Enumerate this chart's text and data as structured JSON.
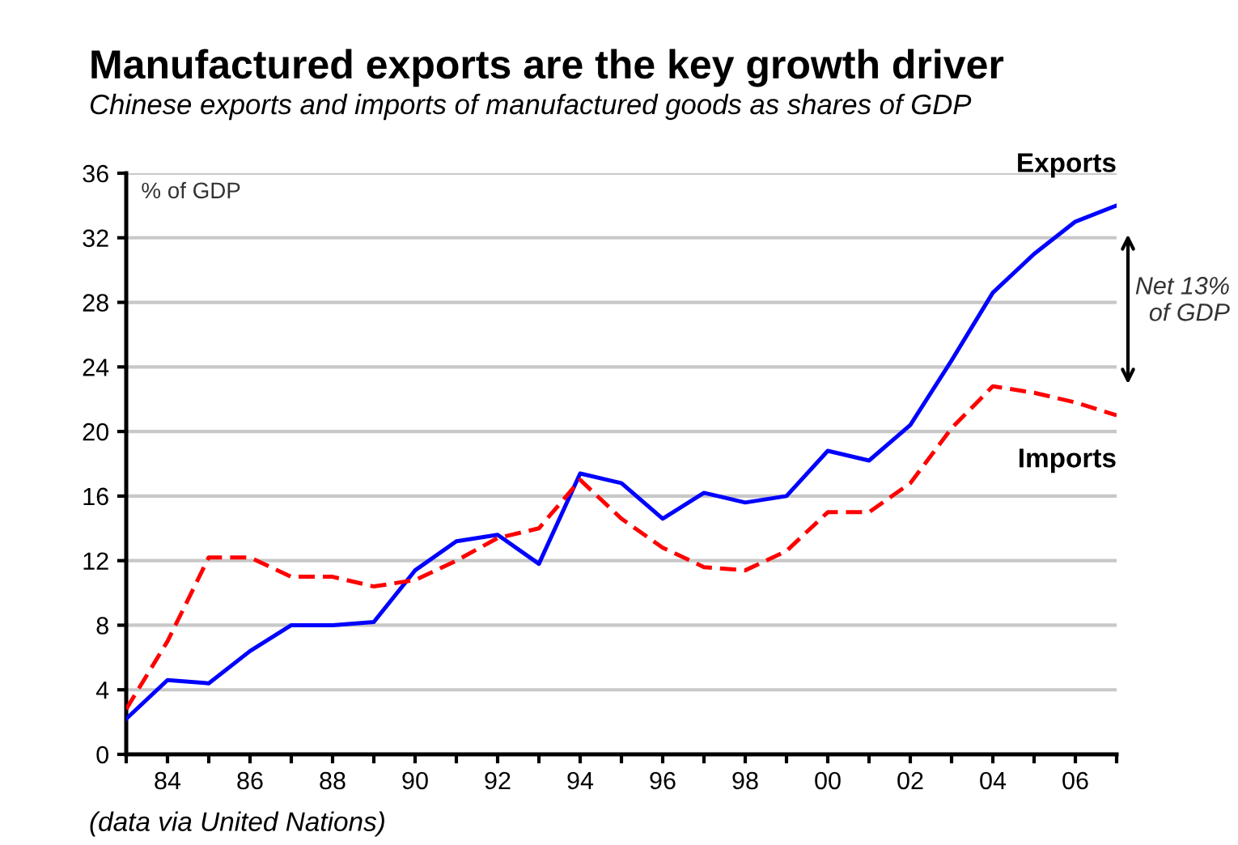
{
  "chart_data": {
    "type": "line",
    "title": "Manufactured exports are the key growth driver",
    "subtitle": "Chinese exports and imports of manufactured goods as shares of GDP",
    "ylabel": "% of GDP",
    "x": [
      1983,
      1984,
      1985,
      1986,
      1987,
      1988,
      1989,
      1990,
      1991,
      1992,
      1993,
      1994,
      1995,
      1996,
      1997,
      1998,
      1999,
      2000,
      2001,
      2002,
      2003,
      2004,
      2005,
      2006,
      2007
    ],
    "series": [
      {
        "name": "Exports",
        "color": "#0000ff",
        "line_style": "solid",
        "values": [
          2.2,
          4.6,
          4.4,
          6.4,
          8.0,
          8.0,
          8.2,
          11.4,
          13.2,
          13.6,
          11.8,
          17.4,
          16.8,
          14.6,
          16.2,
          15.6,
          16.0,
          18.8,
          18.2,
          20.4,
          24.4,
          28.6,
          31.0,
          33.0,
          34.0
        ]
      },
      {
        "name": "Imports",
        "color": "#ff0000",
        "line_style": "dashed",
        "values": [
          2.8,
          7.0,
          12.2,
          12.2,
          11.0,
          11.0,
          10.4,
          10.8,
          12.0,
          13.4,
          14.0,
          17.0,
          14.6,
          12.8,
          11.6,
          11.4,
          12.6,
          15.0,
          15.0,
          16.8,
          20.2,
          22.8,
          22.4,
          21.8,
          21.0
        ]
      }
    ],
    "xlim": [
      1983,
      2007
    ],
    "xticks": [
      {
        "value": 1983,
        "label": null
      },
      {
        "value": 1984,
        "label": "84"
      },
      {
        "value": 1985,
        "label": null
      },
      {
        "value": 1986,
        "label": "86"
      },
      {
        "value": 1987,
        "label": null
      },
      {
        "value": 1988,
        "label": "88"
      },
      {
        "value": 1989,
        "label": null
      },
      {
        "value": 1990,
        "label": "90"
      },
      {
        "value": 1991,
        "label": null
      },
      {
        "value": 1992,
        "label": "92"
      },
      {
        "value": 1993,
        "label": null
      },
      {
        "value": 1994,
        "label": "94"
      },
      {
        "value": 1995,
        "label": null
      },
      {
        "value": 1996,
        "label": "96"
      },
      {
        "value": 1997,
        "label": null
      },
      {
        "value": 1998,
        "label": "98"
      },
      {
        "value": 1999,
        "label": null
      },
      {
        "value": 2000,
        "label": "00"
      },
      {
        "value": 2001,
        "label": null
      },
      {
        "value": 2002,
        "label": "02"
      },
      {
        "value": 2003,
        "label": null
      },
      {
        "value": 2004,
        "label": "04"
      },
      {
        "value": 2005,
        "label": null
      },
      {
        "value": 2006,
        "label": "06"
      },
      {
        "value": 2007,
        "label": null
      }
    ],
    "ylim": [
      0,
      36
    ],
    "yticks": [
      0,
      4,
      8,
      12,
      16,
      20,
      24,
      28,
      32,
      36
    ],
    "grid": "y",
    "legend": false,
    "marker": "none",
    "annotations": [
      "Net 13%\nof GDP",
      "(data via United Nations)"
    ]
  }
}
